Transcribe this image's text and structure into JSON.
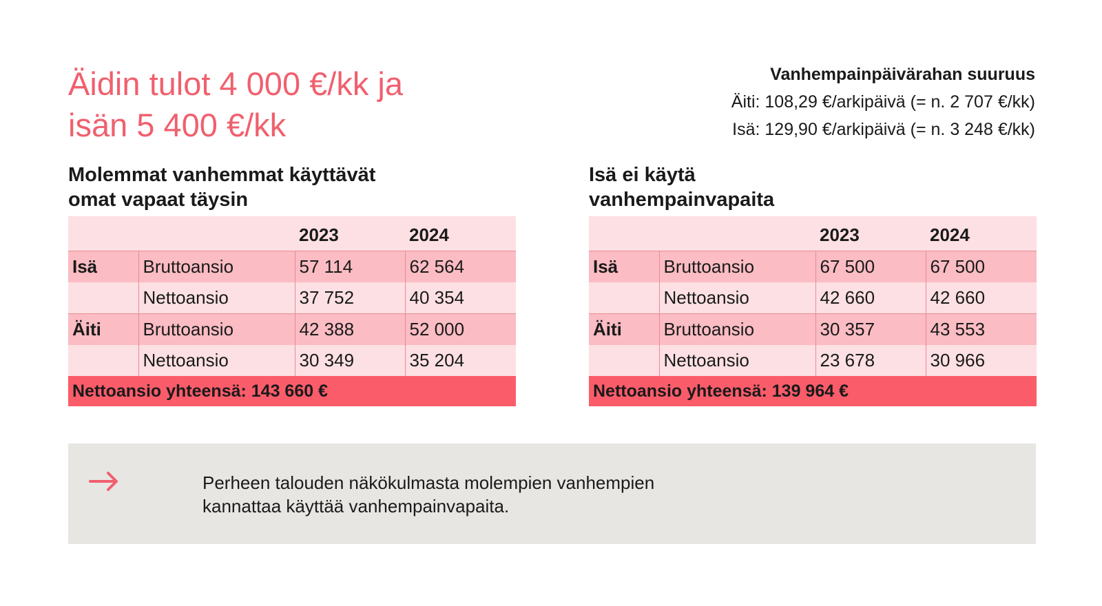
{
  "title_line1": "Äidin tulot 4 000 €/kk ja",
  "title_line2": "isän 5 400 €/kk",
  "info": {
    "heading": "Vanhempainpäivärahan suuruus",
    "mother": "Äiti: 108,29 €/arkipäivä (= n. 2 707 €/kk)",
    "father": "Isä: 129,90 €/arkipäivä (= n. 3 248 €/kk)"
  },
  "left": {
    "heading_line1": "Molemmat vanhemmat käyttävät",
    "heading_line2": "omat vapaat täysin",
    "year1": "2023",
    "year2": "2024",
    "father_label": "Isä",
    "mother_label": "Äiti",
    "gross_label": "Bruttoansio",
    "net_label": "Nettoansio",
    "father_gross": [
      "57 114",
      "62 564"
    ],
    "father_net": [
      "37 752",
      "40 354"
    ],
    "mother_gross": [
      "42 388",
      "52 000"
    ],
    "mother_net": [
      "30 349",
      "35 204"
    ],
    "total": "Nettoansio yhteensä:  143 660 €"
  },
  "right": {
    "heading_line1": "Isä ei käytä",
    "heading_line2": "vanhempainvapaita",
    "year1": "2023",
    "year2": "2024",
    "father_label": "Isä",
    "mother_label": "Äiti",
    "gross_label": "Bruttoansio",
    "net_label": "Nettoansio",
    "father_gross": [
      "67 500",
      "67 500"
    ],
    "father_net": [
      "42 660",
      "42 660"
    ],
    "mother_gross": [
      "30 357",
      "43 553"
    ],
    "mother_net": [
      "23 678",
      "30 966"
    ],
    "total": "Nettoansio yhteensä:  139 964 €"
  },
  "note": {
    "icon": "arrow-right-icon",
    "line1": "Perheen talouden näkökulmasta molempien vanhempien",
    "line2": "kannattaa käyttää vanhempainvapaita."
  },
  "colors": {
    "accent": "#f0606e",
    "header_row": "#fde0e3",
    "dark_row": "#fbbcc3",
    "total_row": "#fb5c6a",
    "note_bg": "#e8e6e3"
  }
}
